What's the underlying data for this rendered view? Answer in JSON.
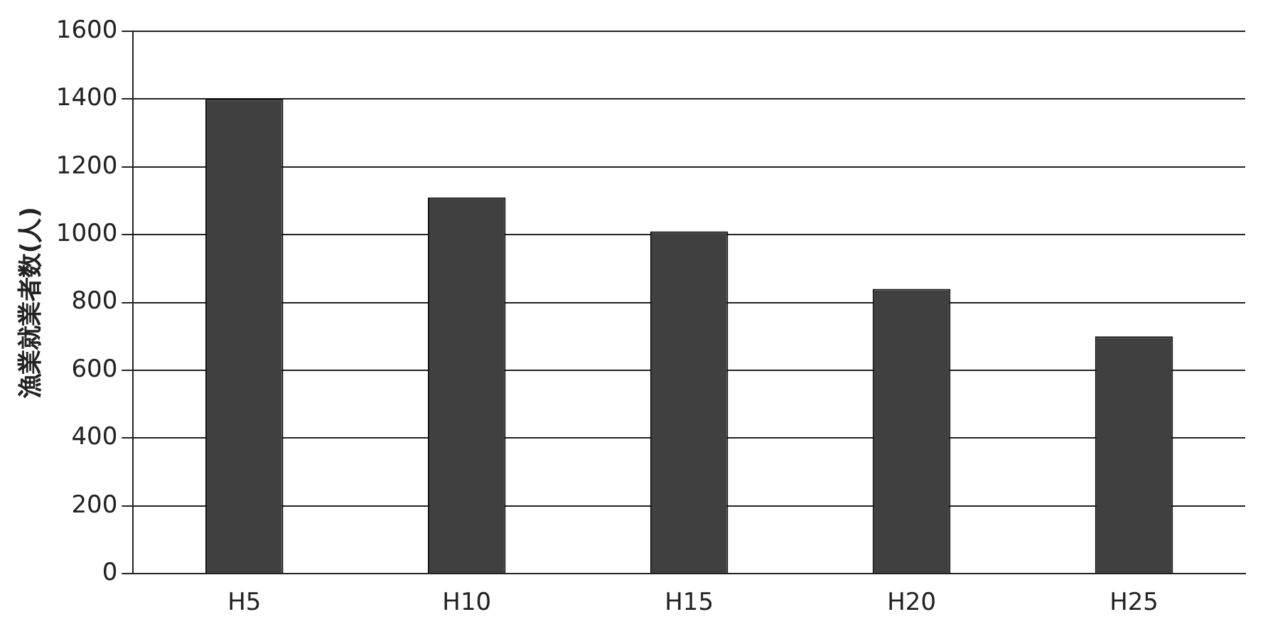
{
  "chart_data": {
    "type": "bar",
    "ylabel": "漁業就業者数(人)",
    "categories": [
      "H5",
      "H10",
      "H15",
      "H20",
      "H25"
    ],
    "values": [
      1400,
      1110,
      1010,
      840,
      700
    ],
    "color": "#404040",
    "ylim": [
      0,
      1600
    ],
    "yticks": [
      0,
      200,
      400,
      600,
      800,
      1000,
      1200,
      1400,
      1600
    ],
    "grid": "y",
    "legend": false
  }
}
